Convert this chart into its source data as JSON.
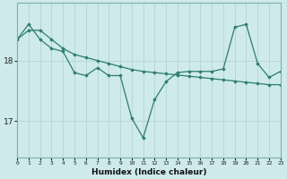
{
  "xlabel": "Humidex (Indice chaleur)",
  "background_color": "#ceeaea",
  "grid_color": "#b8d8d8",
  "line_color": "#2e7d6e",
  "x_values": [
    0,
    1,
    2,
    3,
    4,
    5,
    6,
    7,
    8,
    9,
    10,
    11,
    12,
    13,
    14,
    15,
    16,
    17,
    18,
    19,
    20,
    21,
    22,
    23
  ],
  "line1": [
    18.35,
    18.5,
    18.5,
    18.35,
    18.2,
    18.1,
    18.05,
    18.0,
    17.95,
    17.9,
    17.85,
    17.82,
    17.8,
    17.78,
    17.76,
    17.74,
    17.72,
    17.7,
    17.68,
    17.66,
    17.64,
    17.62,
    17.6,
    17.6
  ],
  "line2": [
    18.35,
    18.6,
    18.35,
    18.2,
    18.15,
    17.8,
    17.75,
    17.88,
    17.75,
    17.75,
    17.05,
    16.72,
    17.35,
    17.65,
    17.8,
    17.82,
    17.82,
    17.82,
    17.86,
    18.55,
    18.6,
    17.95,
    17.72,
    17.82
  ],
  "yticks": [
    17,
    18
  ],
  "xticks": [
    0,
    1,
    2,
    3,
    4,
    5,
    6,
    7,
    8,
    9,
    10,
    11,
    12,
    13,
    14,
    15,
    16,
    17,
    18,
    19,
    20,
    21,
    22,
    23
  ],
  "ylim": [
    16.4,
    18.95
  ],
  "xlim": [
    0,
    23
  ]
}
